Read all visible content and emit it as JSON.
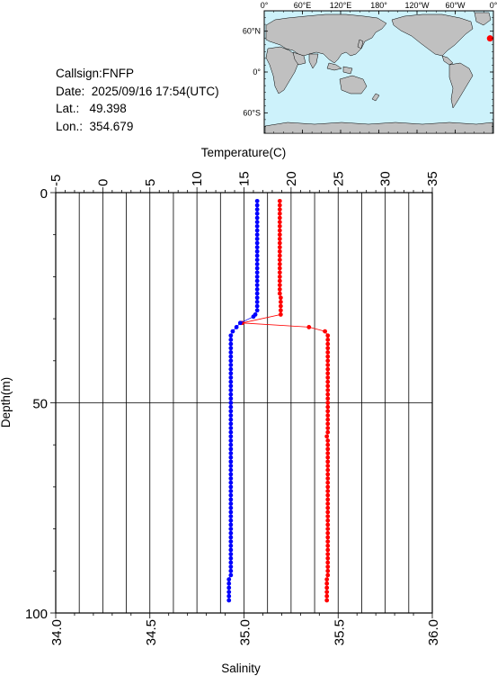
{
  "info": {
    "callsign": "Callsign:FNFP",
    "date": "Date:  2025/09/16 17:54(UTC)",
    "lat": "Lat.:   49.398",
    "lon": "Lon.:  354.679"
  },
  "map": {
    "lon_labels": [
      "0°",
      "60°E",
      "120°E",
      "180°",
      "120°W",
      "60°W",
      "0°"
    ],
    "lat_labels": [
      "60°N",
      "0°",
      "60°S"
    ],
    "ocean_color": "#cdf2fb",
    "land_color": "#c0c0c0",
    "marker_color": "#ff0000",
    "marker": {
      "lat": 49.398,
      "lon": 354.679
    }
  },
  "chart_data": {
    "type": "scatter",
    "title": "",
    "ylabel": "Depth(m)",
    "ylim": [
      0,
      100
    ],
    "y_reversed": true,
    "y_ticks": [
      "0",
      "50",
      "100"
    ],
    "temperature_axis": {
      "label": "Temperature(C)",
      "range": [
        -5,
        35
      ],
      "ticks": [
        "-5",
        "0",
        "5",
        "10",
        "15",
        "20",
        "25",
        "30",
        "35"
      ]
    },
    "salinity_axis": {
      "label": "Salinity",
      "range": [
        34.0,
        36.0
      ],
      "ticks": [
        "34.0",
        "34.5",
        "35.0",
        "35.5",
        "36.0"
      ]
    },
    "grid": true,
    "series": [
      {
        "color": "#ff0000",
        "axis": "temperature",
        "points": [
          [
            18.8,
            2
          ],
          [
            18.8,
            3
          ],
          [
            18.8,
            4
          ],
          [
            18.8,
            5
          ],
          [
            18.8,
            6
          ],
          [
            18.8,
            7
          ],
          [
            18.8,
            8
          ],
          [
            18.8,
            9
          ],
          [
            18.8,
            10
          ],
          [
            18.8,
            11
          ],
          [
            18.8,
            12
          ],
          [
            18.8,
            13
          ],
          [
            18.8,
            14
          ],
          [
            18.8,
            15
          ],
          [
            18.8,
            16
          ],
          [
            18.8,
            17
          ],
          [
            18.8,
            18
          ],
          [
            18.8,
            19
          ],
          [
            18.8,
            20
          ],
          [
            18.8,
            21
          ],
          [
            18.8,
            22
          ],
          [
            18.8,
            23
          ],
          [
            18.8,
            24
          ],
          [
            18.9,
            25
          ],
          [
            18.9,
            26
          ],
          [
            18.9,
            27
          ],
          [
            18.9,
            28
          ],
          [
            18.9,
            29
          ],
          [
            14.8,
            31
          ],
          [
            21.9,
            32
          ],
          [
            23.6,
            33
          ],
          [
            23.9,
            34
          ],
          [
            23.9,
            35
          ],
          [
            23.9,
            36
          ],
          [
            23.9,
            37
          ],
          [
            23.9,
            38
          ],
          [
            23.9,
            39
          ],
          [
            23.9,
            40
          ],
          [
            23.9,
            41
          ],
          [
            23.9,
            42
          ],
          [
            23.9,
            43
          ],
          [
            23.9,
            44
          ],
          [
            23.9,
            45
          ],
          [
            23.9,
            46
          ],
          [
            23.9,
            47
          ],
          [
            23.9,
            48
          ],
          [
            23.9,
            49
          ],
          [
            23.9,
            50
          ],
          [
            23.9,
            51
          ],
          [
            23.9,
            52
          ],
          [
            23.9,
            53
          ],
          [
            23.9,
            54
          ],
          [
            23.9,
            55
          ],
          [
            23.9,
            56
          ],
          [
            23.9,
            57
          ],
          [
            23.8,
            58
          ],
          [
            23.9,
            59
          ],
          [
            23.9,
            60
          ],
          [
            23.9,
            61
          ],
          [
            23.9,
            62
          ],
          [
            23.9,
            63
          ],
          [
            23.9,
            64
          ],
          [
            23.9,
            65
          ],
          [
            23.9,
            66
          ],
          [
            23.9,
            67
          ],
          [
            23.9,
            68
          ],
          [
            23.9,
            69
          ],
          [
            23.9,
            70
          ],
          [
            23.9,
            71
          ],
          [
            23.9,
            72
          ],
          [
            23.9,
            73
          ],
          [
            23.9,
            74
          ],
          [
            23.9,
            75
          ],
          [
            23.9,
            76
          ],
          [
            23.9,
            77
          ],
          [
            23.9,
            78
          ],
          [
            23.9,
            79
          ],
          [
            23.9,
            80
          ],
          [
            23.9,
            81
          ],
          [
            23.9,
            82
          ],
          [
            23.9,
            83
          ],
          [
            23.9,
            84
          ],
          [
            23.9,
            85
          ],
          [
            23.9,
            86
          ],
          [
            23.9,
            87
          ],
          [
            23.9,
            88
          ],
          [
            23.9,
            89
          ],
          [
            23.9,
            90
          ],
          [
            23.9,
            91
          ],
          [
            23.8,
            92
          ],
          [
            23.8,
            93
          ],
          [
            23.8,
            94
          ],
          [
            23.8,
            95
          ],
          [
            23.8,
            96
          ],
          [
            23.8,
            97
          ]
        ]
      },
      {
        "color": "#0000ff",
        "axis": "salinity",
        "points": [
          [
            35.07,
            2
          ],
          [
            35.07,
            3
          ],
          [
            35.07,
            4
          ],
          [
            35.07,
            5
          ],
          [
            35.07,
            6
          ],
          [
            35.07,
            7
          ],
          [
            35.07,
            8
          ],
          [
            35.07,
            9
          ],
          [
            35.07,
            10
          ],
          [
            35.07,
            11
          ],
          [
            35.07,
            12
          ],
          [
            35.07,
            13
          ],
          [
            35.07,
            14
          ],
          [
            35.07,
            15
          ],
          [
            35.07,
            16
          ],
          [
            35.07,
            17
          ],
          [
            35.07,
            18
          ],
          [
            35.07,
            19
          ],
          [
            35.07,
            20
          ],
          [
            35.07,
            21
          ],
          [
            35.07,
            22
          ],
          [
            35.07,
            23
          ],
          [
            35.07,
            24
          ],
          [
            35.07,
            25
          ],
          [
            35.07,
            26
          ],
          [
            35.07,
            27
          ],
          [
            35.07,
            28
          ],
          [
            35.06,
            29
          ],
          [
            35.05,
            29.5
          ],
          [
            34.98,
            31
          ],
          [
            34.96,
            32
          ],
          [
            34.94,
            33
          ],
          [
            34.93,
            34
          ],
          [
            34.93,
            35
          ],
          [
            34.93,
            36
          ],
          [
            34.93,
            37
          ],
          [
            34.93,
            38
          ],
          [
            34.93,
            39
          ],
          [
            34.93,
            40
          ],
          [
            34.93,
            41
          ],
          [
            34.93,
            42
          ],
          [
            34.93,
            43
          ],
          [
            34.93,
            44
          ],
          [
            34.93,
            45
          ],
          [
            34.93,
            46
          ],
          [
            34.93,
            47
          ],
          [
            34.93,
            48
          ],
          [
            34.93,
            49
          ],
          [
            34.93,
            50
          ],
          [
            34.93,
            51
          ],
          [
            34.93,
            52
          ],
          [
            34.93,
            53
          ],
          [
            34.93,
            54
          ],
          [
            34.93,
            55
          ],
          [
            34.93,
            56
          ],
          [
            34.93,
            57
          ],
          [
            34.93,
            58
          ],
          [
            34.93,
            59
          ],
          [
            34.93,
            60
          ],
          [
            34.93,
            61
          ],
          [
            34.93,
            62
          ],
          [
            34.93,
            63
          ],
          [
            34.93,
            64
          ],
          [
            34.93,
            65
          ],
          [
            34.93,
            66
          ],
          [
            34.93,
            67
          ],
          [
            34.93,
            68
          ],
          [
            34.93,
            69
          ],
          [
            34.93,
            70
          ],
          [
            34.93,
            71
          ],
          [
            34.93,
            72
          ],
          [
            34.93,
            73
          ],
          [
            34.93,
            74
          ],
          [
            34.93,
            75
          ],
          [
            34.93,
            76
          ],
          [
            34.93,
            77
          ],
          [
            34.93,
            78
          ],
          [
            34.93,
            79
          ],
          [
            34.93,
            80
          ],
          [
            34.93,
            81
          ],
          [
            34.93,
            82
          ],
          [
            34.93,
            83
          ],
          [
            34.93,
            84
          ],
          [
            34.93,
            85
          ],
          [
            34.93,
            86
          ],
          [
            34.93,
            87
          ],
          [
            34.93,
            88
          ],
          [
            34.93,
            89
          ],
          [
            34.93,
            90
          ],
          [
            34.93,
            91
          ],
          [
            34.92,
            92
          ],
          [
            34.92,
            93
          ],
          [
            34.92,
            94
          ],
          [
            34.92,
            95
          ],
          [
            34.92,
            96
          ],
          [
            34.92,
            97
          ]
        ]
      }
    ]
  }
}
